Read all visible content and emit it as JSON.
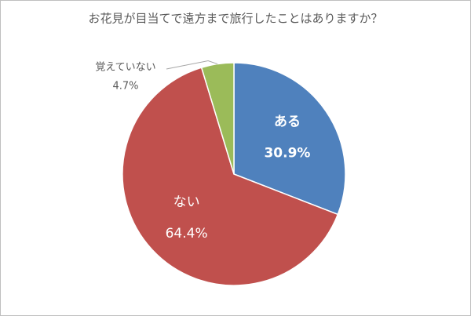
{
  "chart_data": {
    "type": "pie",
    "title": "お花見が目当てで遠方まで旅行したことはありますか？",
    "categories": [
      "ある",
      "ない",
      "覚えていない"
    ],
    "values": [
      30.9,
      64.4,
      4.7
    ],
    "value_labels": [
      "30.9%",
      "64.4%",
      "4.7%"
    ],
    "colors": [
      "#4f81bd",
      "#c0504d",
      "#9bbb59"
    ]
  }
}
